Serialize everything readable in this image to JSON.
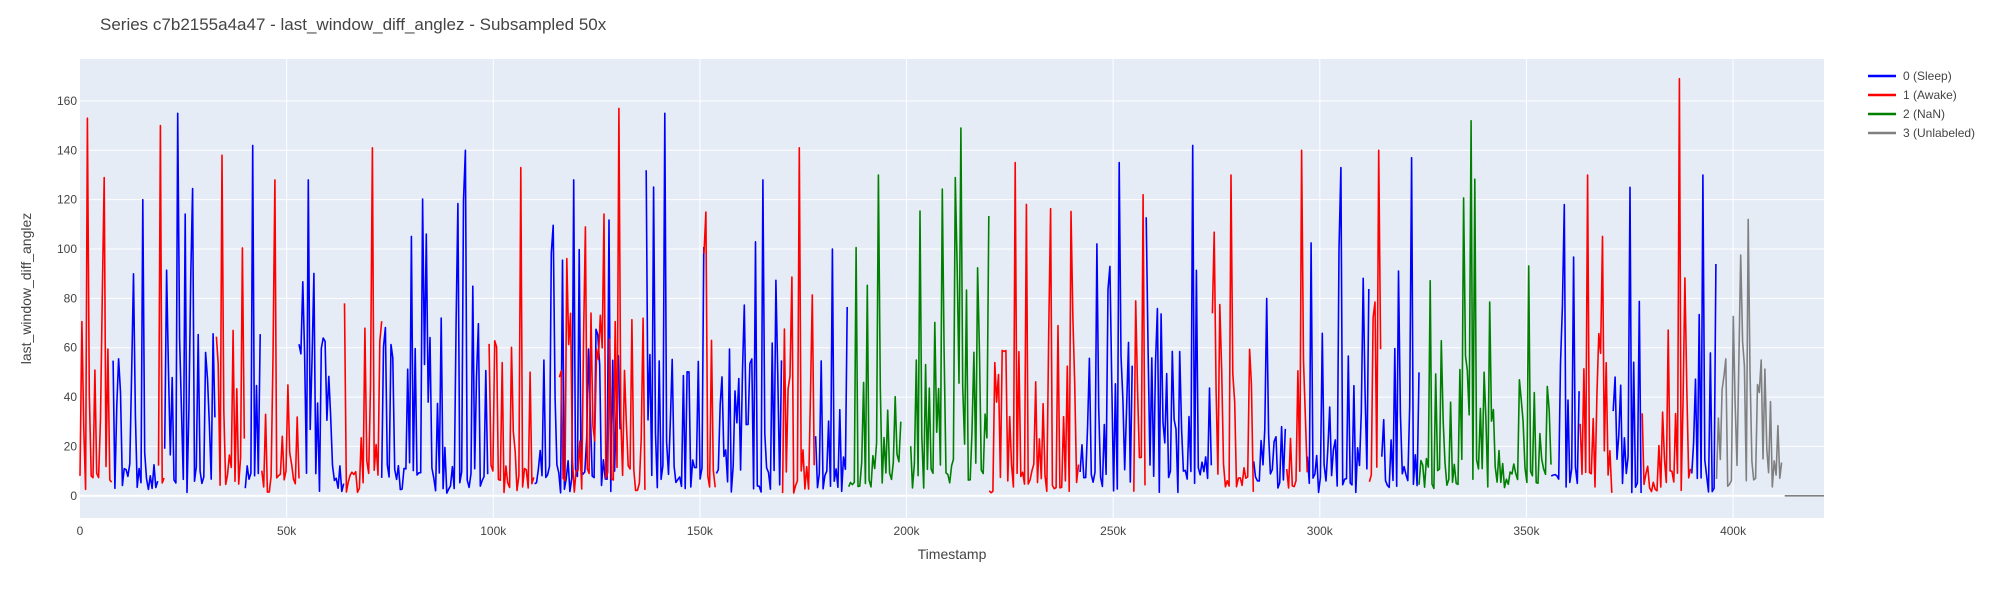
{
  "chart_data": {
    "type": "line",
    "title": "Series c7b2155a4a47 - last_window_diff_anglez - Subsampled 50x",
    "xlabel": "Timestamp",
    "ylabel": "last_window_diff_anglez",
    "xlim": [
      0,
      422000
    ],
    "ylim": [
      -9,
      177
    ],
    "x_ticks": [
      0,
      50000,
      100000,
      150000,
      200000,
      250000,
      300000,
      350000,
      400000
    ],
    "x_tick_labels": [
      "0",
      "50k",
      "100k",
      "150k",
      "200k",
      "250k",
      "300k",
      "350k",
      "400k"
    ],
    "y_ticks": [
      0,
      20,
      40,
      60,
      80,
      100,
      120,
      140,
      160
    ],
    "y_tick_labels": [
      "0",
      "20",
      "40",
      "60",
      "80",
      "100",
      "120",
      "140",
      "160"
    ],
    "grid": true,
    "legend_position": "top-right",
    "sample_step": 450,
    "series": [
      {
        "name": "0 (Sleep)",
        "color": "#0000ff",
        "segments": [
          {
            "x_start": 8000,
            "x_end": 19000,
            "peak": 120,
            "base": 1,
            "spread": 80
          },
          {
            "x_start": 20500,
            "x_end": 33000,
            "peak": 155,
            "base": 1,
            "spread": 90
          },
          {
            "x_start": 40000,
            "x_end": 44000,
            "peak": 142,
            "base": 1,
            "spread": 75
          },
          {
            "x_start": 53000,
            "x_end": 64000,
            "peak": 128,
            "base": 1,
            "spread": 85
          },
          {
            "x_start": 73000,
            "x_end": 99000,
            "peak": 140,
            "base": 1,
            "spread": 95
          },
          {
            "x_start": 110000,
            "x_end": 131000,
            "peak": 128,
            "base": 1,
            "spread": 85
          },
          {
            "x_start": 137000,
            "x_end": 151000,
            "peak": 155,
            "base": 1,
            "spread": 95
          },
          {
            "x_start": 154000,
            "x_end": 170000,
            "peak": 128,
            "base": 1,
            "spread": 80
          },
          {
            "x_start": 178000,
            "x_end": 186000,
            "peak": 100,
            "base": 1,
            "spread": 60
          },
          {
            "x_start": 242000,
            "x_end": 255000,
            "peak": 135,
            "base": 1,
            "spread": 85
          },
          {
            "x_start": 258000,
            "x_end": 274000,
            "peak": 142,
            "base": 1,
            "spread": 80
          },
          {
            "x_start": 284000,
            "x_end": 292000,
            "peak": 80,
            "base": 1,
            "spread": 50
          },
          {
            "x_start": 297000,
            "x_end": 312000,
            "peak": 133,
            "base": 1,
            "spread": 85
          },
          {
            "x_start": 315000,
            "x_end": 324000,
            "peak": 137,
            "base": 1,
            "spread": 80
          },
          {
            "x_start": 356000,
            "x_end": 363000,
            "peak": 118,
            "base": 1,
            "spread": 70
          },
          {
            "x_start": 371000,
            "x_end": 378000,
            "peak": 125,
            "base": 1,
            "spread": 75
          },
          {
            "x_start": 390000,
            "x_end": 396000,
            "peak": 130,
            "base": 1,
            "spread": 65
          }
        ]
      },
      {
        "name": "1 (Awake)",
        "color": "#ff0000",
        "segments": [
          {
            "x_start": 0,
            "x_end": 8000,
            "peak": 153,
            "base": 1,
            "spread": 90
          },
          {
            "x_start": 19000,
            "x_end": 20500,
            "peak": 150,
            "base": 1,
            "spread": 70
          },
          {
            "x_start": 33000,
            "x_end": 40000,
            "peak": 138,
            "base": 1,
            "spread": 85
          },
          {
            "x_start": 44000,
            "x_end": 53000,
            "peak": 128,
            "base": 1,
            "spread": 85
          },
          {
            "x_start": 64000,
            "x_end": 73000,
            "peak": 141,
            "base": 1,
            "spread": 90
          },
          {
            "x_start": 99000,
            "x_end": 110000,
            "peak": 133,
            "base": 1,
            "spread": 85
          },
          {
            "x_start": 116000,
            "x_end": 137000,
            "peak": 157,
            "base": 1,
            "spread": 100
          },
          {
            "x_start": 151000,
            "x_end": 154000,
            "peak": 115,
            "base": 1,
            "spread": 65
          },
          {
            "x_start": 170000,
            "x_end": 178000,
            "peak": 141,
            "base": 1,
            "spread": 90
          },
          {
            "x_start": 220000,
            "x_end": 242000,
            "peak": 135,
            "base": 1,
            "spread": 95
          },
          {
            "x_start": 255000,
            "x_end": 258000,
            "peak": 122,
            "base": 1,
            "spread": 75
          },
          {
            "x_start": 274000,
            "x_end": 284000,
            "peak": 130,
            "base": 1,
            "spread": 85
          },
          {
            "x_start": 292000,
            "x_end": 297000,
            "peak": 140,
            "base": 1,
            "spread": 85
          },
          {
            "x_start": 312000,
            "x_end": 315000,
            "peak": 140,
            "base": 1,
            "spread": 80
          },
          {
            "x_start": 363000,
            "x_end": 371000,
            "peak": 130,
            "base": 1,
            "spread": 80
          },
          {
            "x_start": 378000,
            "x_end": 390000,
            "peak": 169,
            "base": 1,
            "spread": 80
          }
        ]
      },
      {
        "name": "2 (NaN)",
        "color": "#008000",
        "segments": [
          {
            "x_start": 186000,
            "x_end": 199000,
            "peak": 130,
            "base": 3,
            "spread": 60
          },
          {
            "x_start": 201000,
            "x_end": 220000,
            "peak": 149,
            "base": 3,
            "spread": 75
          },
          {
            "x_start": 324000,
            "x_end": 356000,
            "peak": 152,
            "base": 3,
            "spread": 65
          }
        ]
      },
      {
        "name": "3 (Unlabeled)",
        "color": "#808080",
        "segments": [
          {
            "x_start": 396000,
            "x_end": 412000,
            "peak": 112,
            "base": 3,
            "spread": 70
          },
          {
            "x_start": 412500,
            "x_end": 422000,
            "peak": 0,
            "base": 0,
            "spread": 0
          }
        ]
      }
    ]
  }
}
